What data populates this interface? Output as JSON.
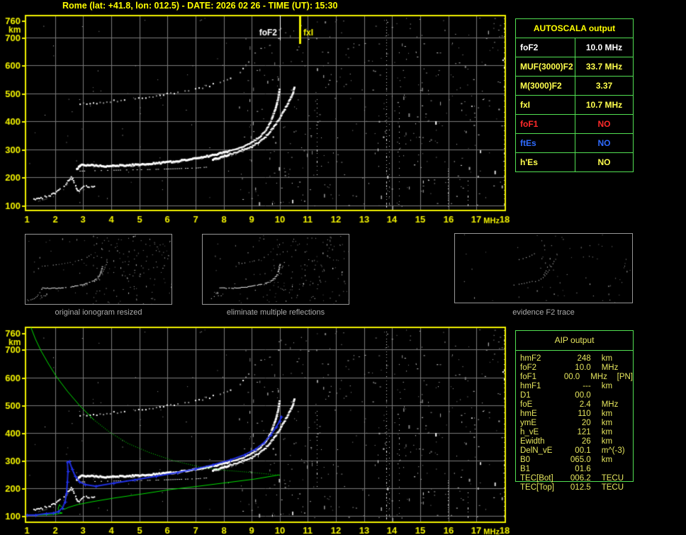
{
  "title": "Rome (lat: +41.8, lon: 012.5) - DATE: 2026 02 26 - TIME (UT): 15:30",
  "autoscala_table": {
    "header": "AUTOSCALA output",
    "rows": [
      {
        "param": "foF2",
        "value": "10.0 MHz",
        "color": "#ffffff"
      },
      {
        "param": "MUF(3000)F2",
        "value": "33.7 MHz",
        "color": "#ffff4d"
      },
      {
        "param": "M(3000)F2",
        "value": "3.37",
        "color": "#ffff4d"
      },
      {
        "param": "fxI",
        "value": "10.7 MHz",
        "color": "#ffff4d"
      },
      {
        "param": "foF1",
        "value": "NO",
        "color": "#ff2a2a"
      },
      {
        "param": "ftEs",
        "value": "NO",
        "color": "#2f6bff"
      },
      {
        "param": "h'Es",
        "value": "NO",
        "color": "#ffff4d"
      }
    ]
  },
  "aip_table": {
    "header": "AIP output",
    "rows": [
      {
        "label": "hmF2",
        "value": "248",
        "unit": "km",
        "extra": ""
      },
      {
        "label": "foF2",
        "value": "10.0",
        "unit": "MHz",
        "extra": ""
      },
      {
        "label": "foF1",
        "value": "00.0",
        "unit": "MHz",
        "extra": "[PN]"
      },
      {
        "label": "hmF1",
        "value": "---",
        "unit": "km",
        "extra": ""
      },
      {
        "label": "D1",
        "value": "00.0",
        "unit": "",
        "extra": ""
      },
      {
        "label": "foE",
        "value": "2.4",
        "unit": "MHz",
        "extra": ""
      },
      {
        "label": "hmE",
        "value": "110",
        "unit": "km",
        "extra": ""
      },
      {
        "label": "ymE",
        "value": "20",
        "unit": "km",
        "extra": ""
      },
      {
        "label": "h_vE",
        "value": "121",
        "unit": "km",
        "extra": ""
      },
      {
        "label": "Ewidth",
        "value": "26",
        "unit": "km",
        "extra": ""
      },
      {
        "label": "DelN_vE",
        "value": "00.1",
        "unit": "m^(-3)",
        "extra": ""
      },
      {
        "label": "B0",
        "value": "065.0",
        "unit": "km",
        "extra": ""
      },
      {
        "label": "B1",
        "value": "01.6",
        "unit": "",
        "extra": ""
      },
      {
        "label": "TEC[Bot]",
        "value": "006.2",
        "unit": "TECU",
        "extra": ""
      },
      {
        "label": "TEC[Top]",
        "value": "012.5",
        "unit": "TECU",
        "extra": ""
      }
    ]
  },
  "thumbnails": [
    {
      "caption": "original ionogram resized"
    },
    {
      "caption": "eliminate multiple reflections"
    },
    {
      "caption": "evidence F2 trace"
    }
  ],
  "colors": {
    "background": "#000000",
    "axis_yellow": "#f2f200",
    "grid_gray": "#7a7a7a",
    "trace_white": "#ffffff",
    "profile_green": "#00e000",
    "fitted_blue": "#2233ee",
    "table_border_green": "#52e052",
    "title_yellow": "#ffff00",
    "caption_gray": "#ababab",
    "aip_text": "#e6e65e",
    "marker_foF2": "#ffffff",
    "marker_fxI": "#f2f200"
  },
  "chart_data": [
    {
      "id": "scaled_ionogram",
      "type": "scatter",
      "title": "",
      "xlabel": "MHz",
      "ylabel": "km",
      "xlim": [
        1,
        18
      ],
      "ylim": [
        100,
        760
      ],
      "x_ticks": [
        1,
        2,
        3,
        4,
        5,
        6,
        7,
        8,
        9,
        10,
        11,
        12,
        13,
        14,
        15,
        16,
        17,
        18
      ],
      "y_ticks": [
        760,
        700,
        600,
        500,
        400,
        300,
        200,
        100
      ],
      "grid": true,
      "markers": [
        {
          "label": "foF2",
          "freq_mhz": 10.0,
          "color": "#ffffff"
        },
        {
          "label": "fxI",
          "freq_mhz": 10.7,
          "color": "#f2f200"
        }
      ],
      "series": [
        {
          "name": "E_trace",
          "style": "blob_white",
          "points": [
            [
              1.25,
              120
            ],
            [
              1.55,
              128
            ],
            [
              1.93,
              140
            ],
            [
              2.26,
              161
            ],
            [
              2.49,
              191
            ],
            [
              2.58,
              200
            ],
            [
              2.66,
              190
            ],
            [
              2.74,
              168
            ],
            [
              2.82,
              151
            ],
            [
              3.07,
              168
            ],
            [
              3.45,
              166
            ]
          ]
        },
        {
          "name": "F2_ordinary",
          "style": "thick_white",
          "points": [
            [
              2.77,
              231
            ],
            [
              2.9,
              247
            ],
            [
              3.8,
              242
            ],
            [
              5.1,
              247
            ],
            [
              6.35,
              259
            ],
            [
              7.6,
              280
            ],
            [
              8.36,
              300
            ],
            [
              8.87,
              317
            ],
            [
              9.25,
              343
            ],
            [
              9.5,
              368
            ],
            [
              9.7,
              406
            ],
            [
              9.83,
              444
            ],
            [
              9.93,
              482
            ],
            [
              9.98,
              512
            ]
          ]
        },
        {
          "name": "F2_ordinary_echo",
          "style": "thin_white",
          "points": [
            [
              2.87,
              224
            ],
            [
              4.0,
              227
            ],
            [
              5.5,
              230
            ],
            [
              7.0,
              235
            ],
            [
              7.36,
              238
            ]
          ]
        },
        {
          "name": "F2_extraordinary",
          "style": "thick_white",
          "points": [
            [
              7.61,
              264
            ],
            [
              8.36,
              287
            ],
            [
              9.0,
              310
            ],
            [
              9.42,
              338
            ],
            [
              9.75,
              376
            ],
            [
              10.0,
              414
            ],
            [
              10.2,
              449
            ],
            [
              10.36,
              479
            ],
            [
              10.46,
              502
            ],
            [
              10.51,
              520
            ]
          ]
        },
        {
          "name": "second_hop",
          "style": "dotted_gray",
          "points": [
            [
              2.87,
              464
            ],
            [
              3.82,
              472
            ],
            [
              4.83,
              482
            ],
            [
              5.84,
              497
            ],
            [
              6.73,
              512
            ],
            [
              7.48,
              530
            ],
            [
              8.11,
              553
            ],
            [
              8.57,
              580
            ],
            [
              8.87,
              612
            ]
          ]
        }
      ]
    },
    {
      "id": "profile_ionogram",
      "type": "scatter",
      "title": "",
      "xlabel": "MHz",
      "ylabel": "km",
      "xlim": [
        1,
        18
      ],
      "ylim": [
        100,
        760
      ],
      "x_ticks": [
        1,
        2,
        3,
        4,
        5,
        6,
        7,
        8,
        9,
        10,
        11,
        12,
        13,
        14,
        15,
        16,
        17,
        18
      ],
      "y_ticks": [
        760,
        700,
        600,
        500,
        400,
        300,
        200,
        100
      ],
      "grid": true,
      "markers": [],
      "series": [
        {
          "name": "profile_topside_solid",
          "style": "green_line",
          "points": [
            [
              1.14,
              781
            ],
            [
              1.3,
              739
            ],
            [
              1.5,
              696
            ],
            [
              1.76,
              650
            ],
            [
              2.06,
              601
            ],
            [
              2.44,
              550
            ],
            [
              2.87,
              499
            ],
            [
              3.37,
              448
            ]
          ]
        },
        {
          "name": "profile_topside_dotted",
          "style": "green_dots",
          "points": [
            [
              3.37,
              448
            ],
            [
              3.95,
              402
            ],
            [
              4.58,
              363
            ],
            [
              5.34,
              330
            ],
            [
              6.22,
              300
            ],
            [
              7.1,
              279
            ],
            [
              7.99,
              266
            ],
            [
              8.87,
              259
            ],
            [
              9.5,
              253
            ],
            [
              9.98,
              248
            ]
          ]
        },
        {
          "name": "profile_bottomside_solid",
          "style": "green_line",
          "points": [
            [
              9.98,
              248
            ],
            [
              9.12,
              233
            ],
            [
              8.11,
              220
            ],
            [
              7.1,
              207
            ],
            [
              6.1,
              195
            ],
            [
              5.09,
              179
            ],
            [
              4.08,
              164
            ],
            [
              3.32,
              151
            ],
            [
              2.82,
              141
            ],
            [
              2.49,
              131
            ],
            [
              2.31,
              123
            ],
            [
              2.16,
              141
            ],
            [
              2.11,
              126
            ],
            [
              2.16,
              113
            ],
            [
              2.26,
              110
            ],
            [
              1.93,
              105
            ],
            [
              1.55,
              103
            ],
            [
              1.18,
              103
            ]
          ]
        },
        {
          "name": "fitted_E_trace",
          "style": "blue_plus",
          "points": [
            [
              1.0,
              103
            ],
            [
              1.3,
              103
            ],
            [
              1.68,
              108
            ],
            [
              1.93,
              110
            ],
            [
              2.11,
              115
            ],
            [
              2.26,
              128
            ],
            [
              2.36,
              151
            ],
            [
              2.41,
              182
            ],
            [
              2.44,
              223
            ],
            [
              2.46,
              261
            ],
            [
              2.44,
              294
            ]
          ]
        },
        {
          "name": "fitted_F2_trace",
          "style": "blue_plus",
          "points": [
            [
              2.51,
              297
            ],
            [
              2.61,
              269
            ],
            [
              2.72,
              243
            ],
            [
              2.87,
              223
            ],
            [
              3.07,
              213
            ],
            [
              3.45,
              207
            ],
            [
              4.08,
              218
            ],
            [
              4.83,
              230
            ],
            [
              5.59,
              243
            ],
            [
              6.35,
              256
            ],
            [
              6.98,
              269
            ],
            [
              7.61,
              284
            ],
            [
              8.24,
              302
            ],
            [
              8.74,
              320
            ],
            [
              9.12,
              340
            ],
            [
              9.42,
              363
            ],
            [
              9.68,
              392
            ],
            [
              9.88,
              422
            ],
            [
              10.0,
              443
            ],
            [
              10.05,
              458
            ]
          ]
        }
      ]
    }
  ]
}
